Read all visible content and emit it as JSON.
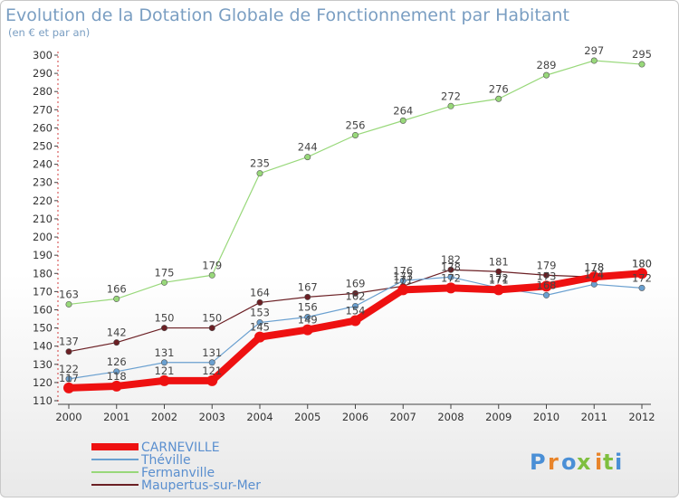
{
  "chart_data": {
    "type": "line",
    "title": "Evolution de la Dotation Globale de Fonctionnement par Habitant",
    "subtitle": "(en € et par an)",
    "xlabel": "",
    "ylabel": "",
    "ylim": [
      110,
      300
    ],
    "yticks": [
      110,
      120,
      130,
      140,
      150,
      160,
      170,
      180,
      190,
      200,
      210,
      220,
      230,
      240,
      250,
      260,
      270,
      280,
      290,
      300
    ],
    "categories": [
      "2000",
      "2001",
      "2002",
      "2003",
      "2004",
      "2005",
      "2006",
      "2007",
      "2008",
      "2009",
      "2010",
      "2011",
      "2012"
    ],
    "series": [
      {
        "name": "Fermanville",
        "color": "#98d87a",
        "values": [
          163,
          166,
          175,
          179,
          235,
          244,
          256,
          264,
          272,
          276,
          289,
          297,
          295
        ]
      },
      {
        "name": "Maupertus-sur-Mer",
        "color": "#6b1f24",
        "values": [
          137,
          142,
          150,
          150,
          164,
          167,
          169,
          173,
          182,
          181,
          179,
          178,
          180
        ]
      },
      {
        "name": "Théville",
        "color": "#6aa0d0",
        "values": [
          122,
          126,
          131,
          131,
          153,
          156,
          162,
          176,
          178,
          172,
          168,
          174,
          172
        ]
      },
      {
        "name": "CARNEVILLE",
        "color": "#ee1111",
        "values": [
          117,
          118,
          121,
          121,
          145,
          149,
          154,
          171,
          172,
          171,
          173,
          178,
          180
        ]
      }
    ],
    "label_series": [
      "Fermanville",
      "Maupertus-sur-Mer",
      "Théville",
      "CARNEVILLE"
    ],
    "legend": [
      "CARNEVILLE",
      "Théville",
      "Fermanville",
      "Maupertus-sur-Mer"
    ],
    "legend_position": "bottom-left",
    "grid": false
  },
  "brand": {
    "letters": [
      "P",
      "r",
      "o",
      "x",
      "i",
      "t",
      "i"
    ]
  }
}
